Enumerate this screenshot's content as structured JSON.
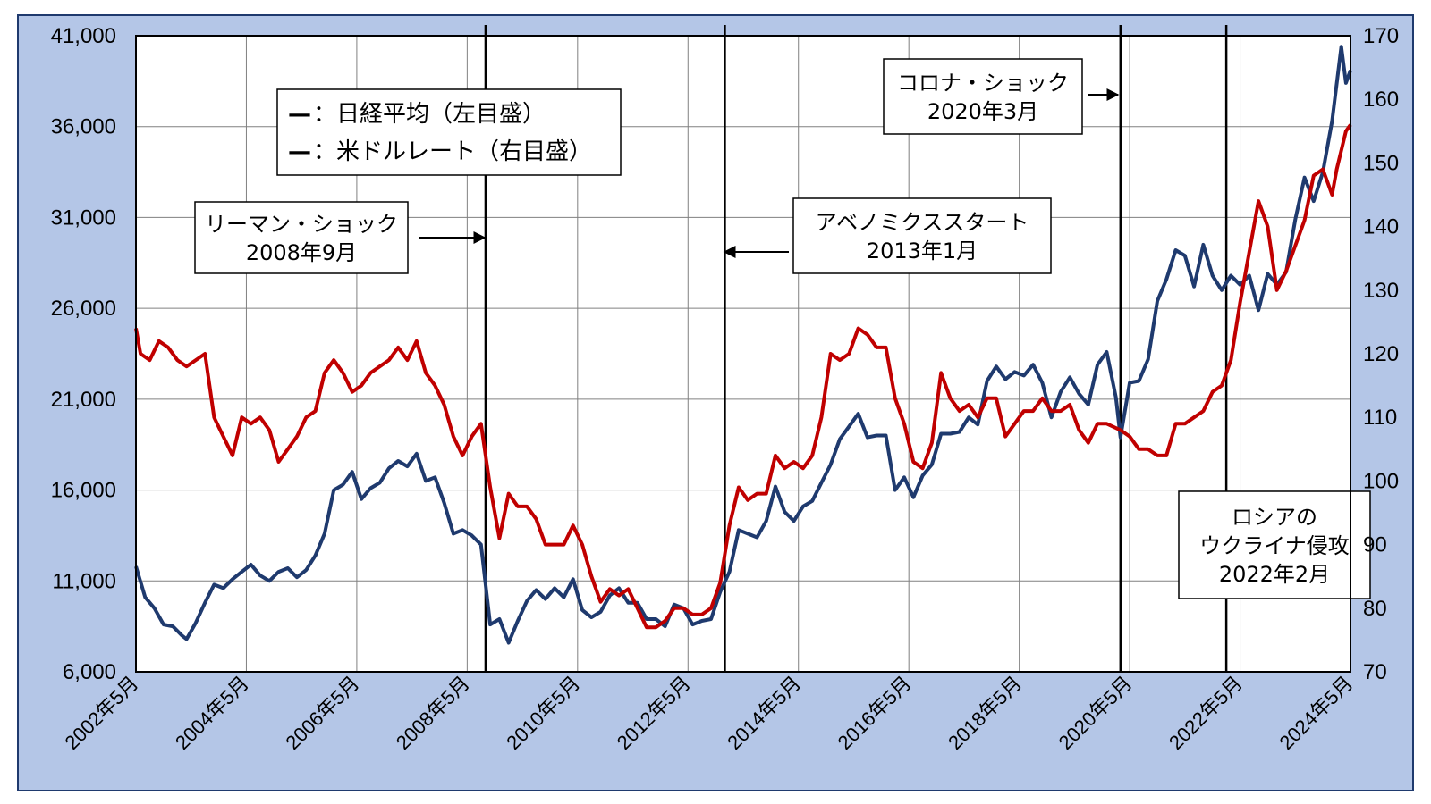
{
  "chart_data": {
    "type": "line",
    "title": "",
    "x_start": "2002-05",
    "x_end": "2024-05",
    "x_ticks": [
      "2002年5月",
      "2004年5月",
      "2006年5月",
      "2008年5月",
      "2010年5月",
      "2012年5月",
      "2014年5月",
      "2016年5月",
      "2018年5月",
      "2020年5月",
      "2022年5月",
      "2024年5月"
    ],
    "y_left": {
      "range": [
        6000,
        41000
      ],
      "ticks": [
        "6,000",
        "11,000",
        "16,000",
        "21,000",
        "26,000",
        "31,000",
        "36,000",
        "41,000"
      ]
    },
    "y_right": {
      "range": [
        70,
        170
      ],
      "ticks": [
        "70",
        "80",
        "90",
        "100",
        "110",
        "120",
        "130",
        "140",
        "150",
        "160",
        "170"
      ]
    },
    "grid": true,
    "legend": [
      {
        "marker": "—",
        "label": "：日経平均（左目盛）",
        "color": "#1f3a6e"
      },
      {
        "marker": "—",
        "label": "：米ドルレート（右目盛）",
        "color": "#c00000"
      }
    ],
    "series": [
      {
        "name": "日経平均（左目盛）",
        "axis": "left",
        "color": "#1f3a6e",
        "points": [
          [
            "2002-05",
            11800
          ],
          [
            "2002-07",
            10100
          ],
          [
            "2002-09",
            9500
          ],
          [
            "2002-11",
            8600
          ],
          [
            "2003-01",
            8500
          ],
          [
            "2003-03",
            8000
          ],
          [
            "2003-04",
            7800
          ],
          [
            "2003-06",
            8700
          ],
          [
            "2003-08",
            9800
          ],
          [
            "2003-10",
            10800
          ],
          [
            "2003-12",
            10600
          ],
          [
            "2004-02",
            11100
          ],
          [
            "2004-04",
            11500
          ],
          [
            "2004-06",
            11900
          ],
          [
            "2004-08",
            11300
          ],
          [
            "2004-10",
            11000
          ],
          [
            "2004-12",
            11500
          ],
          [
            "2005-02",
            11700
          ],
          [
            "2005-04",
            11200
          ],
          [
            "2005-06",
            11600
          ],
          [
            "2005-08",
            12400
          ],
          [
            "2005-10",
            13600
          ],
          [
            "2005-12",
            16000
          ],
          [
            "2006-02",
            16300
          ],
          [
            "2006-04",
            17000
          ],
          [
            "2006-06",
            15500
          ],
          [
            "2006-08",
            16100
          ],
          [
            "2006-10",
            16400
          ],
          [
            "2006-12",
            17200
          ],
          [
            "2007-02",
            17600
          ],
          [
            "2007-04",
            17300
          ],
          [
            "2007-06",
            18000
          ],
          [
            "2007-08",
            16500
          ],
          [
            "2007-10",
            16700
          ],
          [
            "2007-12",
            15300
          ],
          [
            "2008-02",
            13600
          ],
          [
            "2008-04",
            13800
          ],
          [
            "2008-06",
            13500
          ],
          [
            "2008-08",
            13000
          ],
          [
            "2008-10",
            8600
          ],
          [
            "2008-12",
            8900
          ],
          [
            "2009-02",
            7600
          ],
          [
            "2009-04",
            8800
          ],
          [
            "2009-06",
            9900
          ],
          [
            "2009-08",
            10500
          ],
          [
            "2009-10",
            10000
          ],
          [
            "2009-12",
            10600
          ],
          [
            "2010-02",
            10100
          ],
          [
            "2010-04",
            11100
          ],
          [
            "2010-06",
            9400
          ],
          [
            "2010-08",
            9000
          ],
          [
            "2010-10",
            9300
          ],
          [
            "2010-12",
            10200
          ],
          [
            "2011-02",
            10600
          ],
          [
            "2011-04",
            9800
          ],
          [
            "2011-06",
            9800
          ],
          [
            "2011-08",
            8900
          ],
          [
            "2011-10",
            8900
          ],
          [
            "2011-12",
            8500
          ],
          [
            "2012-02",
            9700
          ],
          [
            "2012-04",
            9500
          ],
          [
            "2012-06",
            8600
          ],
          [
            "2012-08",
            8800
          ],
          [
            "2012-10",
            8900
          ],
          [
            "2012-12",
            10400
          ],
          [
            "2013-02",
            11500
          ],
          [
            "2013-04",
            13800
          ],
          [
            "2013-06",
            13600
          ],
          [
            "2013-08",
            13400
          ],
          [
            "2013-10",
            14300
          ],
          [
            "2013-12",
            16200
          ],
          [
            "2014-02",
            14800
          ],
          [
            "2014-04",
            14300
          ],
          [
            "2014-06",
            15100
          ],
          [
            "2014-08",
            15400
          ],
          [
            "2014-10",
            16400
          ],
          [
            "2014-12",
            17400
          ],
          [
            "2015-02",
            18800
          ],
          [
            "2015-04",
            19500
          ],
          [
            "2015-06",
            20200
          ],
          [
            "2015-08",
            18900
          ],
          [
            "2015-10",
            19000
          ],
          [
            "2015-12",
            19000
          ],
          [
            "2016-02",
            16000
          ],
          [
            "2016-04",
            16700
          ],
          [
            "2016-06",
            15600
          ],
          [
            "2016-08",
            16800
          ],
          [
            "2016-10",
            17400
          ],
          [
            "2016-12",
            19100
          ],
          [
            "2017-02",
            19100
          ],
          [
            "2017-04",
            19200
          ],
          [
            "2017-06",
            20000
          ],
          [
            "2017-08",
            19600
          ],
          [
            "2017-10",
            22000
          ],
          [
            "2017-12",
            22800
          ],
          [
            "2018-02",
            22100
          ],
          [
            "2018-04",
            22500
          ],
          [
            "2018-06",
            22300
          ],
          [
            "2018-08",
            22900
          ],
          [
            "2018-10",
            21900
          ],
          [
            "2018-12",
            20000
          ],
          [
            "2019-02",
            21400
          ],
          [
            "2019-04",
            22200
          ],
          [
            "2019-06",
            21300
          ],
          [
            "2019-08",
            20700
          ],
          [
            "2019-10",
            22900
          ],
          [
            "2019-12",
            23600
          ],
          [
            "2020-02",
            21100
          ],
          [
            "2020-03",
            18900
          ],
          [
            "2020-05",
            21900
          ],
          [
            "2020-07",
            22000
          ],
          [
            "2020-09",
            23200
          ],
          [
            "2020-11",
            26400
          ],
          [
            "2021-01",
            27600
          ],
          [
            "2021-03",
            29200
          ],
          [
            "2021-05",
            28900
          ],
          [
            "2021-07",
            27200
          ],
          [
            "2021-09",
            29500
          ],
          [
            "2021-11",
            27800
          ],
          [
            "2022-01",
            27000
          ],
          [
            "2022-03",
            27800
          ],
          [
            "2022-05",
            27300
          ],
          [
            "2022-07",
            27800
          ],
          [
            "2022-09",
            25900
          ],
          [
            "2022-11",
            27900
          ],
          [
            "2023-01",
            27300
          ],
          [
            "2023-03",
            28000
          ],
          [
            "2023-05",
            30900
          ],
          [
            "2023-07",
            33200
          ],
          [
            "2023-09",
            31900
          ],
          [
            "2023-11",
            33500
          ],
          [
            "2024-01",
            36300
          ],
          [
            "2024-03",
            40400
          ],
          [
            "2024-04",
            38400
          ],
          [
            "2024-05",
            39100
          ]
        ]
      },
      {
        "name": "米ドルレート（右目盛）",
        "axis": "right",
        "color": "#c00000",
        "points": [
          [
            "2002-05",
            124
          ],
          [
            "2002-06",
            120
          ],
          [
            "2002-08",
            119
          ],
          [
            "2002-10",
            122
          ],
          [
            "2002-12",
            121
          ],
          [
            "2003-02",
            119
          ],
          [
            "2003-04",
            118
          ],
          [
            "2003-06",
            119
          ],
          [
            "2003-08",
            120
          ],
          [
            "2003-10",
            110
          ],
          [
            "2003-12",
            107
          ],
          [
            "2004-02",
            104
          ],
          [
            "2004-04",
            110
          ],
          [
            "2004-06",
            109
          ],
          [
            "2004-08",
            110
          ],
          [
            "2004-10",
            108
          ],
          [
            "2004-12",
            103
          ],
          [
            "2005-02",
            105
          ],
          [
            "2005-04",
            107
          ],
          [
            "2005-06",
            110
          ],
          [
            "2005-08",
            111
          ],
          [
            "2005-10",
            117
          ],
          [
            "2005-12",
            119
          ],
          [
            "2006-02",
            117
          ],
          [
            "2006-04",
            114
          ],
          [
            "2006-06",
            115
          ],
          [
            "2006-08",
            117
          ],
          [
            "2006-10",
            118
          ],
          [
            "2006-12",
            119
          ],
          [
            "2007-02",
            121
          ],
          [
            "2007-04",
            119
          ],
          [
            "2007-06",
            122
          ],
          [
            "2007-08",
            117
          ],
          [
            "2007-10",
            115
          ],
          [
            "2007-12",
            112
          ],
          [
            "2008-02",
            107
          ],
          [
            "2008-04",
            104
          ],
          [
            "2008-06",
            107
          ],
          [
            "2008-08",
            109
          ],
          [
            "2008-10",
            99
          ],
          [
            "2008-12",
            91
          ],
          [
            "2009-02",
            98
          ],
          [
            "2009-04",
            96
          ],
          [
            "2009-06",
            96
          ],
          [
            "2009-08",
            94
          ],
          [
            "2009-10",
            90
          ],
          [
            "2009-12",
            90
          ],
          [
            "2010-02",
            90
          ],
          [
            "2010-04",
            93
          ],
          [
            "2010-06",
            90
          ],
          [
            "2010-08",
            85
          ],
          [
            "2010-10",
            81
          ],
          [
            "2010-12",
            83
          ],
          [
            "2011-02",
            82
          ],
          [
            "2011-04",
            83
          ],
          [
            "2011-06",
            80
          ],
          [
            "2011-08",
            77
          ],
          [
            "2011-10",
            77
          ],
          [
            "2011-12",
            78
          ],
          [
            "2012-02",
            80
          ],
          [
            "2012-04",
            80
          ],
          [
            "2012-06",
            79
          ],
          [
            "2012-08",
            79
          ],
          [
            "2012-10",
            80
          ],
          [
            "2012-12",
            84
          ],
          [
            "2013-02",
            93
          ],
          [
            "2013-04",
            99
          ],
          [
            "2013-06",
            97
          ],
          [
            "2013-08",
            98
          ],
          [
            "2013-10",
            98
          ],
          [
            "2013-12",
            104
          ],
          [
            "2014-02",
            102
          ],
          [
            "2014-04",
            103
          ],
          [
            "2014-06",
            102
          ],
          [
            "2014-08",
            104
          ],
          [
            "2014-10",
            110
          ],
          [
            "2014-12",
            120
          ],
          [
            "2015-02",
            119
          ],
          [
            "2015-04",
            120
          ],
          [
            "2015-06",
            124
          ],
          [
            "2015-08",
            123
          ],
          [
            "2015-10",
            121
          ],
          [
            "2015-12",
            121
          ],
          [
            "2016-02",
            113
          ],
          [
            "2016-04",
            109
          ],
          [
            "2016-06",
            103
          ],
          [
            "2016-08",
            102
          ],
          [
            "2016-10",
            106
          ],
          [
            "2016-12",
            117
          ],
          [
            "2017-02",
            113
          ],
          [
            "2017-04",
            111
          ],
          [
            "2017-06",
            112
          ],
          [
            "2017-08",
            110
          ],
          [
            "2017-10",
            113
          ],
          [
            "2017-12",
            113
          ],
          [
            "2018-02",
            107
          ],
          [
            "2018-04",
            109
          ],
          [
            "2018-06",
            111
          ],
          [
            "2018-08",
            111
          ],
          [
            "2018-10",
            113
          ],
          [
            "2018-12",
            111
          ],
          [
            "2019-02",
            111
          ],
          [
            "2019-04",
            112
          ],
          [
            "2019-06",
            108
          ],
          [
            "2019-08",
            106
          ],
          [
            "2019-10",
            109
          ],
          [
            "2019-12",
            109
          ],
          [
            "2020-03",
            108
          ],
          [
            "2020-05",
            107
          ],
          [
            "2020-07",
            105
          ],
          [
            "2020-09",
            105
          ],
          [
            "2020-11",
            104
          ],
          [
            "2021-01",
            104
          ],
          [
            "2021-03",
            109
          ],
          [
            "2021-05",
            109
          ],
          [
            "2021-07",
            110
          ],
          [
            "2021-09",
            111
          ],
          [
            "2021-11",
            114
          ],
          [
            "2022-01",
            115
          ],
          [
            "2022-03",
            119
          ],
          [
            "2022-05",
            128
          ],
          [
            "2022-07",
            136
          ],
          [
            "2022-09",
            144
          ],
          [
            "2022-11",
            140
          ],
          [
            "2023-01",
            130
          ],
          [
            "2023-03",
            133
          ],
          [
            "2023-05",
            137
          ],
          [
            "2023-07",
            141
          ],
          [
            "2023-09",
            148
          ],
          [
            "2023-11",
            149
          ],
          [
            "2024-01",
            145
          ],
          [
            "2024-02",
            149
          ],
          [
            "2024-04",
            155
          ],
          [
            "2024-05",
            156
          ]
        ]
      }
    ],
    "events": [
      {
        "date": "2008-09",
        "label_lines": [
          "リーマン・ショック",
          "2008年9月"
        ],
        "arrow": "right"
      },
      {
        "date": "2013-01",
        "label_lines": [
          "アベノミクススタート",
          "2013年1月"
        ],
        "arrow": "left"
      },
      {
        "date": "2020-03",
        "label_lines": [
          "コロナ・ショック",
          "2020年3月"
        ],
        "arrow": "right"
      },
      {
        "date": "2022-02",
        "label_lines": [
          "ロシアの",
          "ウクライナ侵攻",
          "2022年2月"
        ],
        "arrow": "none"
      }
    ]
  },
  "colors": {
    "background": "#b4c6e7",
    "plot": "#ffffff",
    "frame": "#1f3a6e"
  }
}
